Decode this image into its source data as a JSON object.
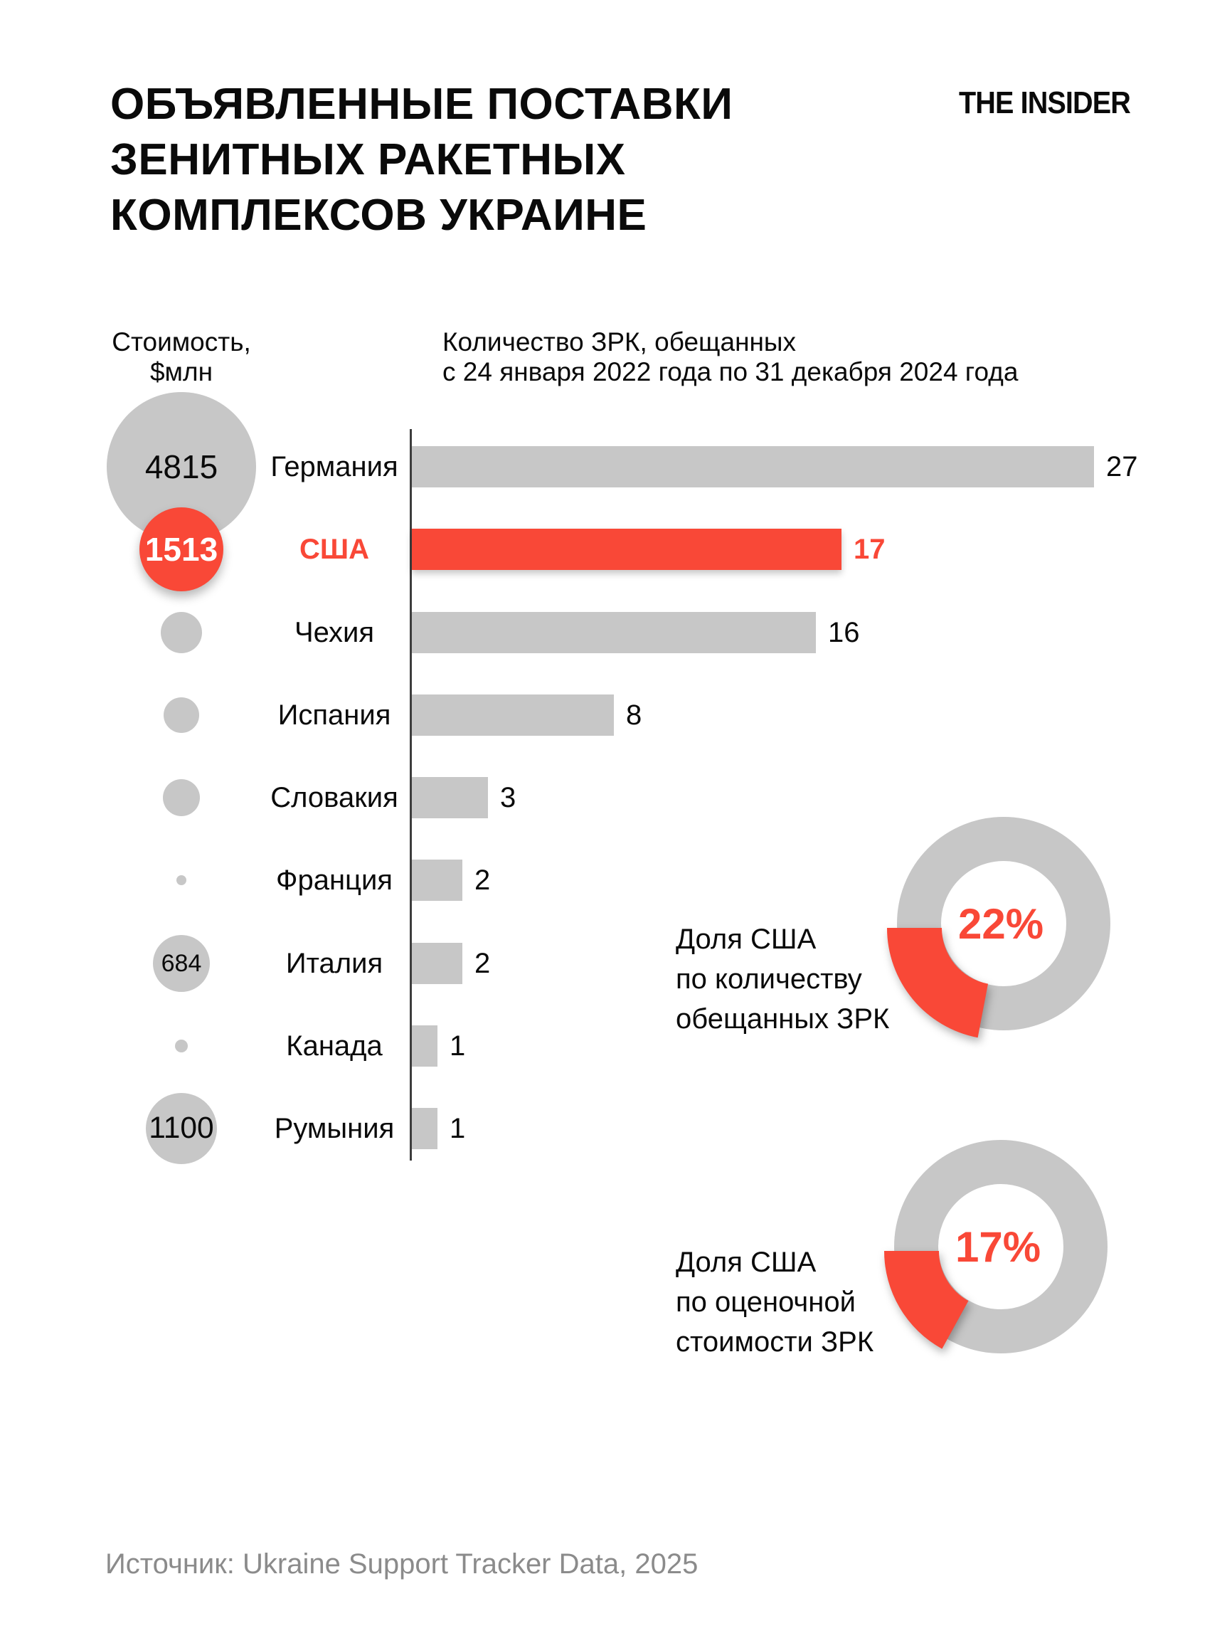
{
  "logo_text": "THE INSIDER",
  "title_lines": [
    "ОБЪЯВЛЕННЫЕ ПОСТАВКИ",
    "ЗЕНИТНЫХ РАКЕТНЫХ",
    "КОМПЛЕКСОВ УКРАИНЕ"
  ],
  "cost_header_lines": [
    "Стоимость,",
    "$млн"
  ],
  "qty_header_lines": [
    "Количество ЗРК, обещанных",
    "с 24 января 2022 года по 31 декабря 2024 года"
  ],
  "colors": {
    "red": "#F94837",
    "gray": "#C7C7C7",
    "axis": "#3d3d3d",
    "black": "#0a0a0a",
    "white": "#ffffff",
    "source_gray": "#8B8B8B"
  },
  "chart_data": {
    "type": "bar",
    "title": "Количество ЗРК, обещанных с 24 января 2022 года по 31 декабря 2024 года",
    "bubble_column_label": "Стоимость, $млн",
    "orientation": "horizontal",
    "grid": false,
    "xlim": [
      0,
      27
    ],
    "categories": [
      "Германия",
      "США",
      "Чехия",
      "Испания",
      "Словакия",
      "Франция",
      "Италия",
      "Канада",
      "Румыния"
    ],
    "values": [
      27,
      17,
      16,
      8,
      3,
      2,
      2,
      1,
      1
    ],
    "cost_values_mln_usd": [
      4815,
      1513,
      null,
      null,
      null,
      null,
      684,
      null,
      1100
    ],
    "highlight_category": "США",
    "rows": [
      {
        "country": "Германия",
        "qty": 27,
        "cost": "4815",
        "circle_r": 105,
        "highlight": false
      },
      {
        "country": "США",
        "qty": 17,
        "cost": "1513",
        "circle_r": 59,
        "highlight": true
      },
      {
        "country": "Чехия",
        "qty": 16,
        "cost": "",
        "circle_r": 29,
        "highlight": false
      },
      {
        "country": "Испания",
        "qty": 8,
        "cost": "",
        "circle_r": 25,
        "highlight": false
      },
      {
        "country": "Словакия",
        "qty": 3,
        "cost": "",
        "circle_r": 26,
        "highlight": false
      },
      {
        "country": "Франция",
        "qty": 2,
        "cost": "",
        "circle_r": 7,
        "highlight": false
      },
      {
        "country": "Италия",
        "qty": 2,
        "cost": "684",
        "circle_r": 40,
        "highlight": false
      },
      {
        "country": "Канада",
        "qty": 1,
        "cost": "",
        "circle_r": 9,
        "highlight": false
      },
      {
        "country": "Румыния",
        "qty": 1,
        "cost": "1100",
        "circle_r": 50,
        "highlight": false
      }
    ]
  },
  "donuts": [
    {
      "percent": 22,
      "label": "22%",
      "caption_lines": [
        "Доля США",
        "по количеству",
        "обещанных ЗРК"
      ]
    },
    {
      "percent": 17,
      "label": "17%",
      "caption_lines": [
        "Доля США",
        "по оценочной",
        "стоимости ЗРК"
      ]
    }
  ],
  "source_text": "Источник: Ukraine Support Tracker Data, 2025"
}
